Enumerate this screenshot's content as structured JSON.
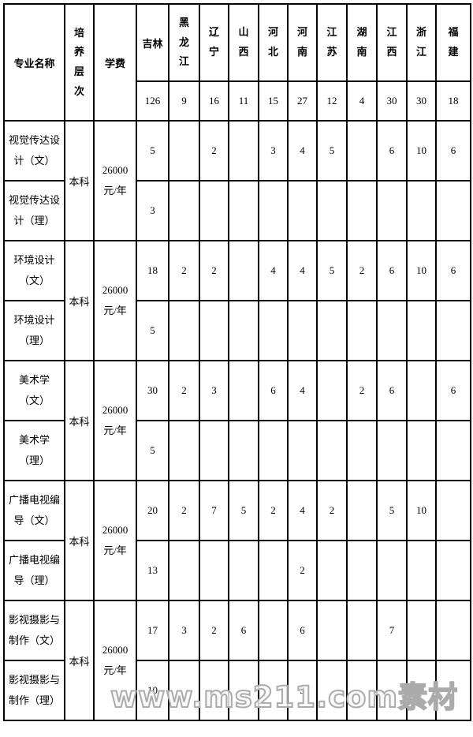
{
  "header": {
    "major_label": "专业名称",
    "level_label": "培养层次",
    "tuition_label": "学费",
    "provinces": [
      "吉林",
      "黑龙江",
      "辽宁",
      "山西",
      "河北",
      "河南",
      "江苏",
      "湖南",
      "江西",
      "浙江",
      "福建"
    ],
    "plan_totals": [
      "126",
      "9",
      "16",
      "11",
      "15",
      "27",
      "12",
      "4",
      "30",
      "30",
      "18"
    ]
  },
  "groups": [
    {
      "level": "本科",
      "tuition_lines": [
        "26000",
        "元/年"
      ],
      "rows": [
        {
          "major": "视觉传达设计（文）",
          "values": [
            "5",
            "",
            "2",
            "",
            "3",
            "4",
            "5",
            "",
            "6",
            "10",
            "6"
          ]
        },
        {
          "major": "视觉传达设计（理）",
          "values": [
            "3",
            "",
            "",
            "",
            "",
            "",
            "",
            "",
            "",
            "",
            ""
          ]
        }
      ]
    },
    {
      "level": "本科",
      "tuition_lines": [
        "26000",
        "元/年"
      ],
      "rows": [
        {
          "major": "环境设计（文）",
          "values": [
            "18",
            "2",
            "2",
            "",
            "4",
            "4",
            "5",
            "2",
            "6",
            "10",
            "6"
          ]
        },
        {
          "major": "环境设计（理）",
          "values": [
            "5",
            "",
            "",
            "",
            "",
            "",
            "",
            "",
            "",
            "",
            ""
          ]
        }
      ]
    },
    {
      "level": "本科",
      "tuition_lines": [
        "26000",
        "元/年"
      ],
      "rows": [
        {
          "major": "美术学（文）",
          "values": [
            "30",
            "2",
            "3",
            "",
            "6",
            "4",
            "",
            "2",
            "6",
            "",
            "6"
          ]
        },
        {
          "major": "美术学（理）",
          "values": [
            "5",
            "",
            "",
            "",
            "",
            "",
            "",
            "",
            "",
            "",
            ""
          ]
        }
      ]
    },
    {
      "level": "本科",
      "tuition_lines": [
        "26000",
        "元/年"
      ],
      "rows": [
        {
          "major": "广播电视编导（文）",
          "values": [
            "20",
            "2",
            "7",
            "5",
            "2",
            "4",
            "2",
            "",
            "5",
            "10",
            ""
          ]
        },
        {
          "major": "广播电视编导（理）",
          "values": [
            "13",
            "",
            "",
            "",
            "",
            "2",
            "",
            "",
            "",
            "",
            ""
          ]
        }
      ]
    },
    {
      "level": "本科",
      "tuition_lines": [
        "26000",
        "元/年"
      ],
      "rows": [
        {
          "major": "影视摄影与制作（文）",
          "values": [
            "17",
            "3",
            "2",
            "6",
            "",
            "6",
            "",
            "",
            "7",
            "",
            ""
          ]
        },
        {
          "major": "影视摄影与制作（理）",
          "values": [
            "10",
            "",
            "",
            "",
            "",
            "3",
            "",
            "",
            "",
            "",
            ""
          ]
        }
      ]
    }
  ],
  "watermark": {
    "text": "www.ms211.com素材"
  }
}
